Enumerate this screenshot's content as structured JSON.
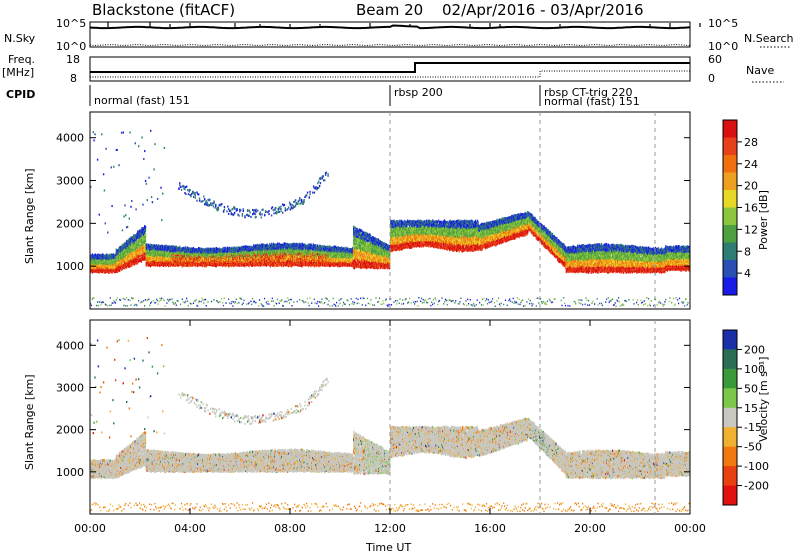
{
  "header": {
    "station": "Blackstone (fitACF)",
    "beam": "Beam 20",
    "daterange": "02/Apr/2016 - 03/Apr/2016"
  },
  "side_labels": {
    "nsky": "N.Sky",
    "nsearch": "N.Search",
    "freq": "Freq.",
    "mhz": "[MHz]",
    "nave": "Nave",
    "cpid": "CPID"
  },
  "strip_ticks": {
    "nsky_left": [
      "10^5",
      "10^0"
    ],
    "nsky_right": [
      "10^5",
      "10^0"
    ],
    "freq_left": [
      "18",
      "8"
    ],
    "freq_right": [
      "60",
      "0"
    ]
  },
  "cpid_segments": [
    {
      "label": "normal (fast) 151",
      "start_h": 0.0
    },
    {
      "label": "rbsp 200",
      "start_h": 12.0
    },
    {
      "label": "rbsp CT-trig 220",
      "start_h": 18.0
    },
    {
      "label": "normal (fast) 151",
      "start_h": 18.0
    }
  ],
  "chart_data": [
    {
      "type": "heatmap",
      "panel": "power",
      "xlabel": "",
      "ylabel": "Slant Range [km]",
      "xlim_hours": [
        0,
        24
      ],
      "ylim_km": [
        0,
        4600
      ],
      "yticks": [
        "1000",
        "2000",
        "3000",
        "4000"
      ],
      "colorbar": {
        "label": "Power [dB]",
        "ticks": [
          "28",
          "24",
          "20",
          "16",
          "12",
          "8",
          "4"
        ],
        "colors": [
          "#1a1ae6",
          "#2a4fb5",
          "#2e7d74",
          "#4fa040",
          "#8cc63f",
          "#e6d825",
          "#f0a020",
          "#f07010",
          "#e8401a",
          "#d81010"
        ]
      }
    },
    {
      "type": "heatmap",
      "panel": "velocity",
      "xlabel": "Time UT",
      "ylabel": "Slant Range [km]",
      "xlim_hours": [
        0,
        24
      ],
      "ylim_km": [
        0,
        4600
      ],
      "yticks": [
        "1000",
        "2000",
        "3000",
        "4000"
      ],
      "xticks": [
        "00:00",
        "04:00",
        "08:00",
        "12:00",
        "16:00",
        "20:00",
        "00:00"
      ],
      "colorbar": {
        "label": "Velocity [m s⁻¹]",
        "ticks": [
          "200",
          "100",
          "50",
          "15",
          "-15",
          "-50",
          "-100",
          "-200"
        ],
        "colors": [
          "#1a2fa8",
          "#2a6f55",
          "#3a9a3a",
          "#7cc84a",
          "#c8c8c0",
          "#f0b030",
          "#f07a10",
          "#e84010",
          "#e01010"
        ]
      }
    }
  ]
}
